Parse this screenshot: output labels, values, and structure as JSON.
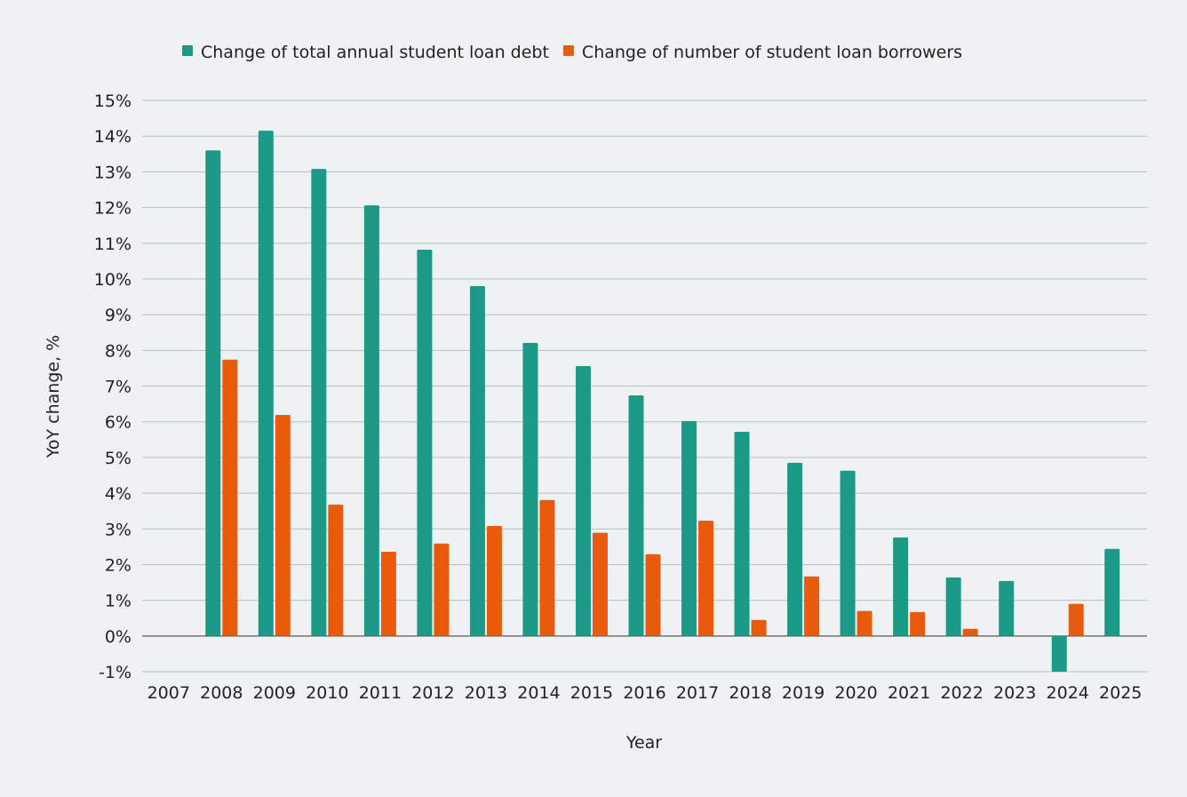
{
  "chart_data": {
    "type": "bar",
    "title": "",
    "xlabel": "Year",
    "ylabel": "YoY change, %",
    "ylim": [
      -1,
      15
    ],
    "yticks": [
      -1,
      0,
      1,
      2,
      3,
      4,
      5,
      6,
      7,
      8,
      9,
      10,
      11,
      12,
      13,
      14,
      15
    ],
    "ytick_suffix": "%",
    "grid": true,
    "legend_position": "top-center",
    "categories": [
      "2007",
      "2008",
      "2009",
      "2010",
      "2011",
      "2012",
      "2013",
      "2014",
      "2015",
      "2016",
      "2017",
      "2018",
      "2019",
      "2020",
      "2021",
      "2022",
      "2023",
      "2024",
      "2025"
    ],
    "series": [
      {
        "name": "Change of total annual student loan debt",
        "color": "#1a9a87",
        "values": [
          null,
          13.6,
          14.15,
          13.08,
          12.06,
          10.82,
          9.8,
          8.21,
          7.56,
          6.74,
          6.02,
          5.72,
          4.85,
          4.63,
          2.76,
          1.64,
          1.54,
          -1.0,
          2.44
        ]
      },
      {
        "name": "Change of number of student loan borrowers",
        "color": "#e85a0c",
        "values": [
          null,
          7.74,
          6.19,
          3.68,
          2.36,
          2.59,
          3.08,
          3.81,
          2.89,
          2.29,
          3.23,
          0.45,
          1.67,
          0.7,
          0.67,
          0.2,
          null,
          0.9,
          null
        ]
      }
    ]
  }
}
